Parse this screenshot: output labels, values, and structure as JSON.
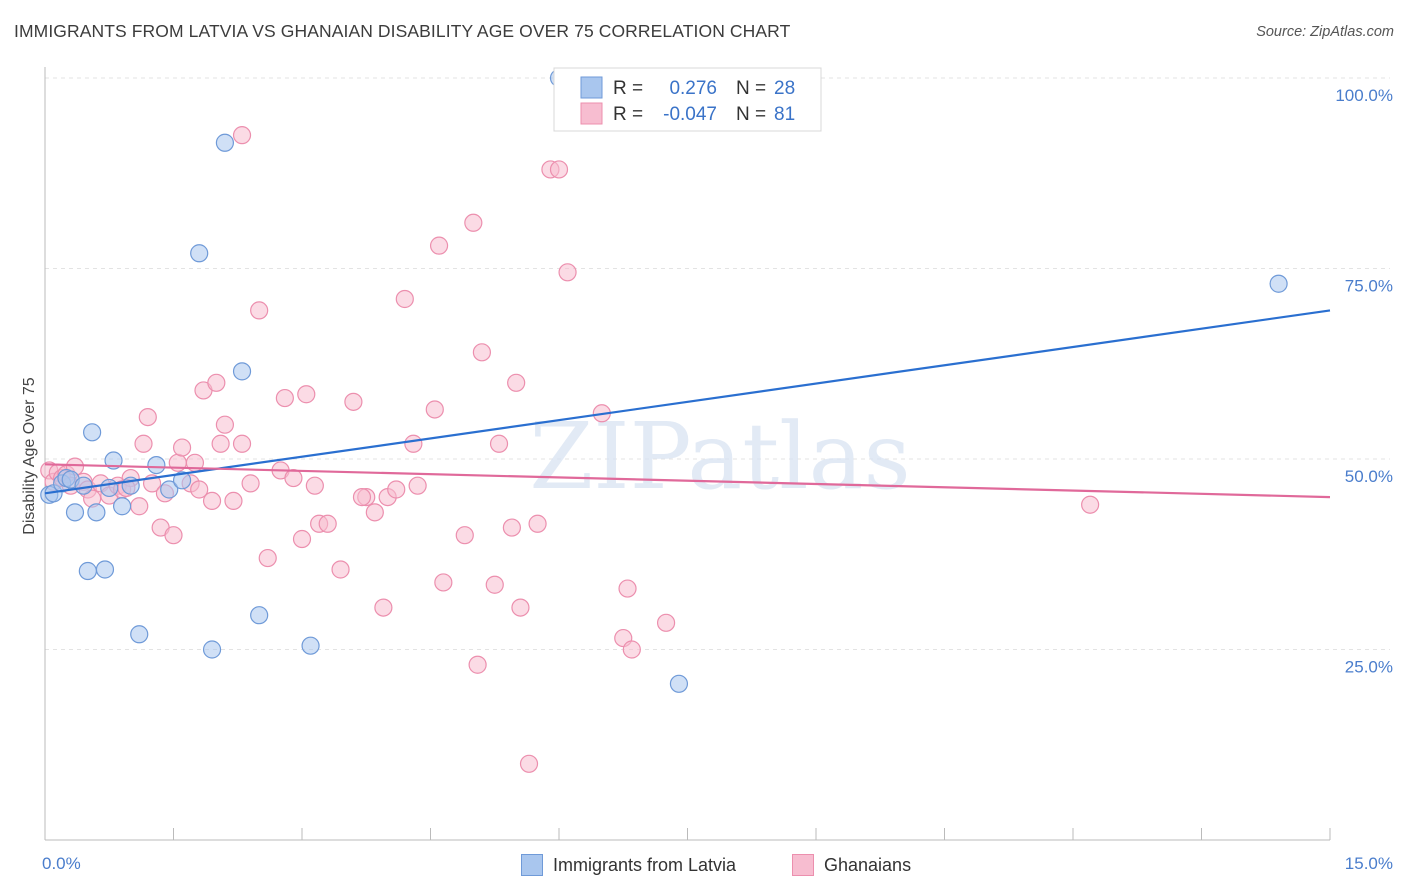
{
  "title": "IMMIGRANTS FROM LATVIA VS GHANAIAN DISABILITY AGE OVER 75 CORRELATION CHART",
  "source": "Source: ZipAtlas.com",
  "watermark": "ZIPatlas",
  "chart_data": {
    "type": "scatter",
    "ylabel": "Disability Age Over 75",
    "xlim": [
      0,
      15
    ],
    "ylim": [
      0,
      100
    ],
    "x_tick_labels": [
      "0.0%",
      "15.0%"
    ],
    "y_ticks": [
      {
        "value": 100,
        "label": "100.0%"
      },
      {
        "value": 75,
        "label": "75.0%"
      },
      {
        "value": 50,
        "label": "50.0%"
      },
      {
        "value": 25,
        "label": "25.0%"
      }
    ],
    "grid": true,
    "legend": {
      "position": "top-center",
      "rows": [
        {
          "r_label": "R =",
          "r_value": "0.276",
          "n_label": "N =",
          "n_value": "28"
        },
        {
          "r_label": "R =",
          "r_value": "-0.047",
          "n_label": "N =",
          "n_value": "81"
        }
      ]
    },
    "colors": {
      "blue_fill": "#a9c6ee",
      "blue_stroke": "#6f9ad8",
      "blue_line": "#2a6fd0",
      "pink_fill": "#f7bdd0",
      "pink_stroke": "#ec8fae",
      "pink_line": "#e0699a"
    },
    "series": [
      {
        "name": "Immigrants from Latvia",
        "trend": {
          "x0": 0,
          "y0": 45.5,
          "x1": 15,
          "y1": 69.5
        },
        "points": [
          [
            0.05,
            45.3
          ],
          [
            0.1,
            45.5
          ],
          [
            0.2,
            46.8
          ],
          [
            0.25,
            47.5
          ],
          [
            0.3,
            47.3
          ],
          [
            0.35,
            43.0
          ],
          [
            0.45,
            46.5
          ],
          [
            0.55,
            53.5
          ],
          [
            0.6,
            43.0
          ],
          [
            0.7,
            35.5
          ],
          [
            0.75,
            46.2
          ],
          [
            0.8,
            49.8
          ],
          [
            0.9,
            43.8
          ],
          [
            1.0,
            46.5
          ],
          [
            1.1,
            27.0
          ],
          [
            1.3,
            49.2
          ],
          [
            1.45,
            46.0
          ],
          [
            1.6,
            47.2
          ],
          [
            1.8,
            77.0
          ],
          [
            1.95,
            25.0
          ],
          [
            2.1,
            91.5
          ],
          [
            2.3,
            61.5
          ],
          [
            2.5,
            29.5
          ],
          [
            3.1,
            25.5
          ],
          [
            6.0,
            100.0
          ],
          [
            7.4,
            20.5
          ],
          [
            14.4,
            73.0
          ],
          [
            0.5,
            35.3
          ]
        ]
      },
      {
        "name": "Ghanaians",
        "trend": {
          "x0": 0,
          "y0": 49.3,
          "x1": 15,
          "y1": 45.0
        },
        "points": [
          [
            0.05,
            48.5
          ],
          [
            0.1,
            47.0
          ],
          [
            0.15,
            48.2
          ],
          [
            0.2,
            47.5
          ],
          [
            0.25,
            48.0
          ],
          [
            0.3,
            46.5
          ],
          [
            0.35,
            49.0
          ],
          [
            0.45,
            47.0
          ],
          [
            0.5,
            46.0
          ],
          [
            0.55,
            44.8
          ],
          [
            0.65,
            46.8
          ],
          [
            0.75,
            45.2
          ],
          [
            0.85,
            46.5
          ],
          [
            0.9,
            46.0
          ],
          [
            1.0,
            47.5
          ],
          [
            1.1,
            43.8
          ],
          [
            1.15,
            52.0
          ],
          [
            1.2,
            55.5
          ],
          [
            1.25,
            46.8
          ],
          [
            1.35,
            41.0
          ],
          [
            1.4,
            45.5
          ],
          [
            1.5,
            40.0
          ],
          [
            1.55,
            49.5
          ],
          [
            1.6,
            51.5
          ],
          [
            1.7,
            46.8
          ],
          [
            1.75,
            49.5
          ],
          [
            1.85,
            59.0
          ],
          [
            1.95,
            44.5
          ],
          [
            2.0,
            60.0
          ],
          [
            2.05,
            52.0
          ],
          [
            2.1,
            54.5
          ],
          [
            2.2,
            44.5
          ],
          [
            2.3,
            52.0
          ],
          [
            2.4,
            46.8
          ],
          [
            2.5,
            69.5
          ],
          [
            2.6,
            37.0
          ],
          [
            2.75,
            48.5
          ],
          [
            2.8,
            58.0
          ],
          [
            2.9,
            47.5
          ],
          [
            3.0,
            39.5
          ],
          [
            3.05,
            58.5
          ],
          [
            3.15,
            46.5
          ],
          [
            3.2,
            41.5
          ],
          [
            3.3,
            41.5
          ],
          [
            3.45,
            35.5
          ],
          [
            3.6,
            57.5
          ],
          [
            3.75,
            45.0
          ],
          [
            3.85,
            43.0
          ],
          [
            3.95,
            30.5
          ],
          [
            4.0,
            45.0
          ],
          [
            4.1,
            46.0
          ],
          [
            4.2,
            71.0
          ],
          [
            4.3,
            52.0
          ],
          [
            4.55,
            56.5
          ],
          [
            4.6,
            78.0
          ],
          [
            4.65,
            33.8
          ],
          [
            4.9,
            40.0
          ],
          [
            5.0,
            81.0
          ],
          [
            5.05,
            23.0
          ],
          [
            5.1,
            64.0
          ],
          [
            5.25,
            33.5
          ],
          [
            5.3,
            52.0
          ],
          [
            5.45,
            41.0
          ],
          [
            5.5,
            60.0
          ],
          [
            5.55,
            30.5
          ],
          [
            5.65,
            10.0
          ],
          [
            5.75,
            41.5
          ],
          [
            5.9,
            88.0
          ],
          [
            6.0,
            88.0
          ],
          [
            6.1,
            74.5
          ],
          [
            6.5,
            56.0
          ],
          [
            6.75,
            26.5
          ],
          [
            6.8,
            33.0
          ],
          [
            6.85,
            25.0
          ],
          [
            7.25,
            28.5
          ],
          [
            2.3,
            92.5
          ],
          [
            12.2,
            44.0
          ],
          [
            0.95,
            46.2
          ],
          [
            1.8,
            46.0
          ],
          [
            3.7,
            45.0
          ],
          [
            4.35,
            46.5
          ]
        ]
      }
    ]
  }
}
